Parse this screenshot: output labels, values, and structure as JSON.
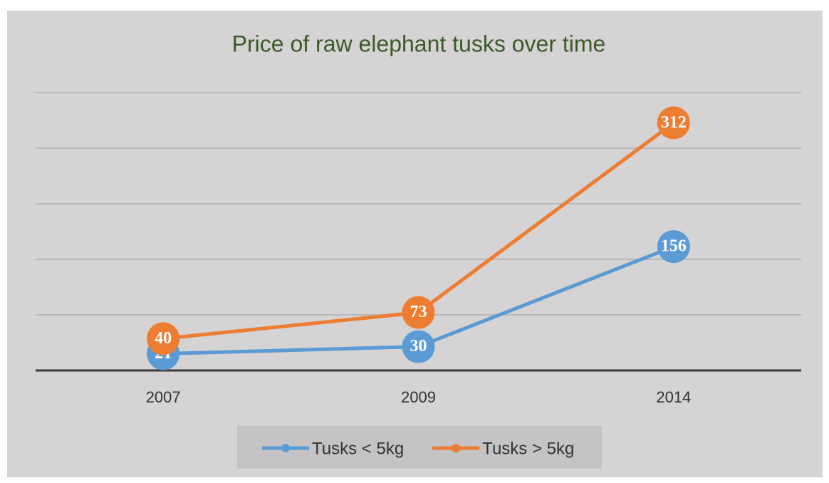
{
  "chart_data": {
    "type": "line",
    "title": "Price of raw elephant tusks over time",
    "categories": [
      "2007",
      "2009",
      "2014"
    ],
    "series": [
      {
        "name": "Tusks < 5kg",
        "color": "#5b9bd5",
        "values": [
          21,
          30,
          156
        ]
      },
      {
        "name": "Tusks > 5kg",
        "color": "#ed7d31",
        "values": [
          40,
          73,
          312
        ]
      }
    ],
    "ylim": [
      0,
      350
    ],
    "yticks": [
      0,
      70,
      140,
      210,
      280,
      350
    ],
    "grid": true,
    "legend": "bottom"
  }
}
